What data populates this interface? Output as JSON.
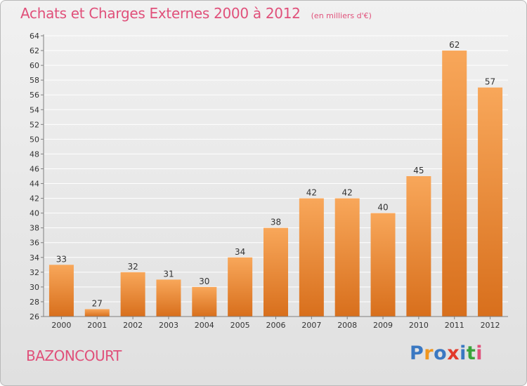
{
  "header": {
    "title": "Achats et Charges Externes 2000 à 2012",
    "subtitle": "(en milliers d'€)"
  },
  "footer": {
    "commune": "BAZONCOURT",
    "logo_text": "Proxiti"
  },
  "colors": {
    "title": "#e0507a",
    "bar_light": "#f8a75a",
    "bar_dark": "#d86f1c",
    "grid": "#ffffff",
    "axis": "#7f7f7f",
    "logo": [
      "#3a78c2",
      "#f0961e",
      "#3a78c2",
      "#e23a2a",
      "#3a78c2",
      "#3aa33a",
      "#e0507a"
    ]
  },
  "chart_data": {
    "type": "bar",
    "title": "Achats et Charges Externes 2000 à 2012",
    "subtitle": "(en milliers d'€)",
    "xlabel": "",
    "ylabel": "",
    "categories": [
      "2000",
      "2001",
      "2002",
      "2003",
      "2004",
      "2005",
      "2006",
      "2007",
      "2008",
      "2009",
      "2010",
      "2011",
      "2012"
    ],
    "values": [
      33,
      27,
      32,
      31,
      30,
      34,
      38,
      42,
      42,
      40,
      45,
      62,
      57
    ],
    "ylim": [
      26,
      64
    ],
    "yticks": [
      26,
      28,
      30,
      32,
      34,
      36,
      38,
      40,
      42,
      44,
      46,
      48,
      50,
      52,
      54,
      56,
      58,
      60,
      62,
      64
    ],
    "grid": true,
    "legend": "none"
  }
}
